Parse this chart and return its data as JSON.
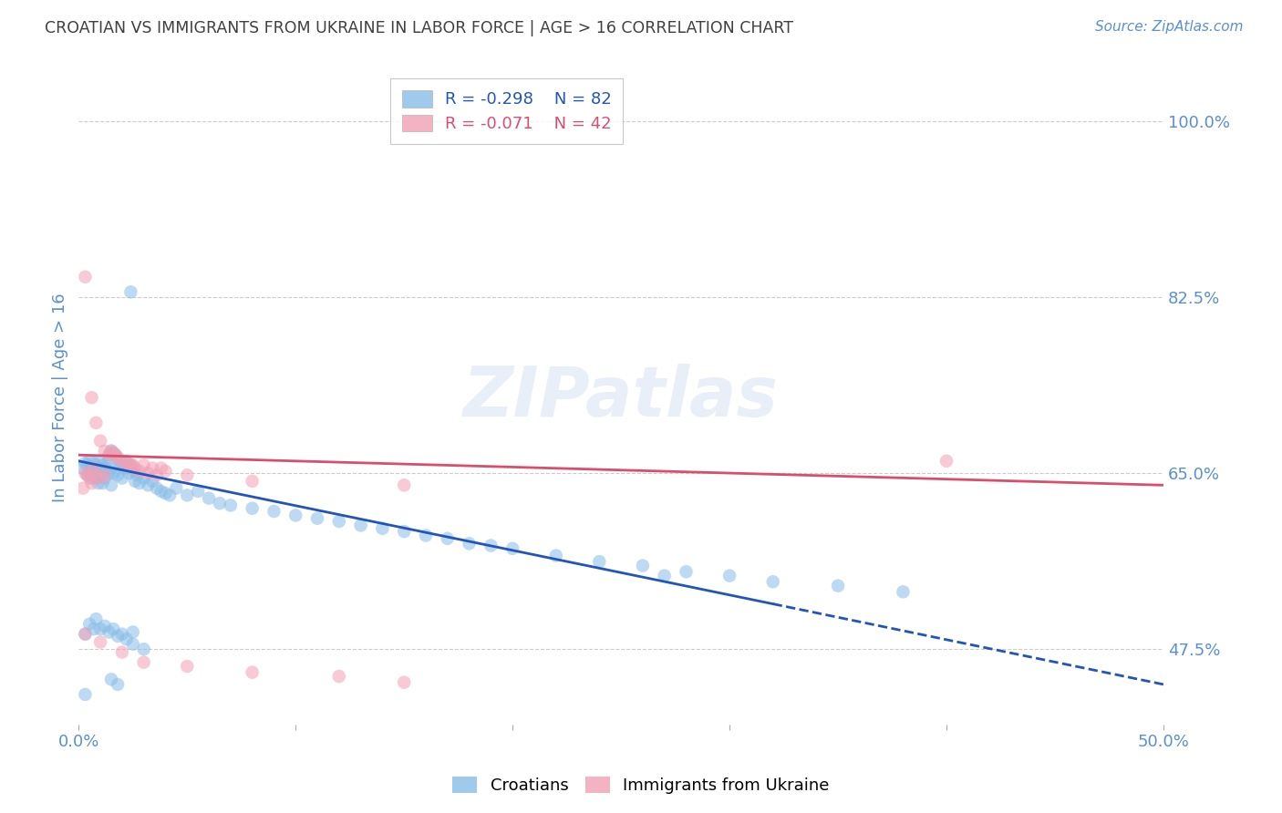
{
  "title": "CROATIAN VS IMMIGRANTS FROM UKRAINE IN LABOR FORCE | AGE > 16 CORRELATION CHART",
  "source": "Source: ZipAtlas.com",
  "ylabel": "In Labor Force | Age > 16",
  "xlim": [
    0.0,
    0.5
  ],
  "ylim": [
    0.4,
    1.05
  ],
  "xticks": [
    0.0,
    0.1,
    0.2,
    0.3,
    0.4,
    0.5
  ],
  "xticklabels": [
    "0.0%",
    "",
    "",
    "",
    "",
    "50.0%"
  ],
  "ytick_labels_right": [
    "100.0%",
    "82.5%",
    "65.0%",
    "47.5%"
  ],
  "ytick_vals_right": [
    1.0,
    0.825,
    0.65,
    0.475
  ],
  "watermark": "ZIPatlas",
  "blue_color": "#89BDE8",
  "pink_color": "#F2A0B5",
  "blue_line_color": "#2255BB",
  "pink_line_color": "#D94E6F",
  "axis_label_color": "#5B8FD4",
  "title_color": "#404040",
  "grid_color": "#CCCCCC",
  "blue_scatter": [
    [
      0.002,
      0.655
    ],
    [
      0.003,
      0.66
    ],
    [
      0.004,
      0.658
    ],
    [
      0.004,
      0.648
    ],
    [
      0.005,
      0.662
    ],
    [
      0.005,
      0.65
    ],
    [
      0.006,
      0.655
    ],
    [
      0.006,
      0.645
    ],
    [
      0.007,
      0.66
    ],
    [
      0.007,
      0.65
    ],
    [
      0.008,
      0.658
    ],
    [
      0.008,
      0.645
    ],
    [
      0.009,
      0.655
    ],
    [
      0.009,
      0.64
    ],
    [
      0.01,
      0.662
    ],
    [
      0.01,
      0.648
    ],
    [
      0.011,
      0.658
    ],
    [
      0.011,
      0.64
    ],
    [
      0.012,
      0.655
    ],
    [
      0.012,
      0.645
    ],
    [
      0.013,
      0.66
    ],
    [
      0.014,
      0.668
    ],
    [
      0.014,
      0.65
    ],
    [
      0.015,
      0.672
    ],
    [
      0.015,
      0.655
    ],
    [
      0.015,
      0.638
    ],
    [
      0.016,
      0.67
    ],
    [
      0.016,
      0.65
    ],
    [
      0.017,
      0.668
    ],
    [
      0.018,
      0.665
    ],
    [
      0.018,
      0.648
    ],
    [
      0.019,
      0.658
    ],
    [
      0.02,
      0.66
    ],
    [
      0.02,
      0.645
    ],
    [
      0.021,
      0.655
    ],
    [
      0.022,
      0.662
    ],
    [
      0.023,
      0.65
    ],
    [
      0.024,
      0.658
    ],
    [
      0.025,
      0.652
    ],
    [
      0.026,
      0.642
    ],
    [
      0.027,
      0.648
    ],
    [
      0.028,
      0.64
    ],
    [
      0.03,
      0.645
    ],
    [
      0.032,
      0.638
    ],
    [
      0.034,
      0.642
    ],
    [
      0.036,
      0.635
    ],
    [
      0.038,
      0.632
    ],
    [
      0.04,
      0.63
    ],
    [
      0.042,
      0.628
    ],
    [
      0.045,
      0.635
    ],
    [
      0.05,
      0.628
    ],
    [
      0.055,
      0.632
    ],
    [
      0.06,
      0.625
    ],
    [
      0.065,
      0.62
    ],
    [
      0.07,
      0.618
    ],
    [
      0.08,
      0.615
    ],
    [
      0.09,
      0.612
    ],
    [
      0.1,
      0.608
    ],
    [
      0.11,
      0.605
    ],
    [
      0.12,
      0.602
    ],
    [
      0.13,
      0.598
    ],
    [
      0.14,
      0.595
    ],
    [
      0.15,
      0.592
    ],
    [
      0.16,
      0.588
    ],
    [
      0.17,
      0.585
    ],
    [
      0.18,
      0.58
    ],
    [
      0.19,
      0.578
    ],
    [
      0.2,
      0.575
    ],
    [
      0.22,
      0.568
    ],
    [
      0.24,
      0.562
    ],
    [
      0.26,
      0.558
    ],
    [
      0.28,
      0.552
    ],
    [
      0.3,
      0.548
    ],
    [
      0.32,
      0.542
    ],
    [
      0.35,
      0.538
    ],
    [
      0.38,
      0.532
    ],
    [
      0.003,
      0.49
    ],
    [
      0.005,
      0.5
    ],
    [
      0.007,
      0.495
    ],
    [
      0.008,
      0.505
    ],
    [
      0.01,
      0.495
    ],
    [
      0.012,
      0.498
    ],
    [
      0.014,
      0.492
    ],
    [
      0.016,
      0.495
    ],
    [
      0.018,
      0.488
    ],
    [
      0.02,
      0.49
    ],
    [
      0.022,
      0.485
    ],
    [
      0.025,
      0.492
    ],
    [
      0.024,
      0.83
    ],
    [
      0.27,
      0.548
    ],
    [
      0.003,
      0.43
    ],
    [
      0.01,
      0.39
    ],
    [
      0.015,
      0.445
    ],
    [
      0.018,
      0.44
    ],
    [
      0.025,
      0.48
    ],
    [
      0.03,
      0.475
    ]
  ],
  "pink_scatter": [
    [
      0.003,
      0.845
    ],
    [
      0.006,
      0.725
    ],
    [
      0.008,
      0.7
    ],
    [
      0.01,
      0.682
    ],
    [
      0.012,
      0.672
    ],
    [
      0.014,
      0.668
    ],
    [
      0.015,
      0.672
    ],
    [
      0.016,
      0.67
    ],
    [
      0.017,
      0.668
    ],
    [
      0.018,
      0.665
    ],
    [
      0.02,
      0.662
    ],
    [
      0.022,
      0.66
    ],
    [
      0.024,
      0.658
    ],
    [
      0.025,
      0.658
    ],
    [
      0.026,
      0.655
    ],
    [
      0.028,
      0.652
    ],
    [
      0.03,
      0.658
    ],
    [
      0.032,
      0.65
    ],
    [
      0.034,
      0.655
    ],
    [
      0.036,
      0.648
    ],
    [
      0.038,
      0.655
    ],
    [
      0.04,
      0.652
    ],
    [
      0.05,
      0.648
    ],
    [
      0.08,
      0.642
    ],
    [
      0.003,
      0.65
    ],
    [
      0.004,
      0.648
    ],
    [
      0.005,
      0.645
    ],
    [
      0.006,
      0.64
    ],
    [
      0.007,
      0.655
    ],
    [
      0.008,
      0.648
    ],
    [
      0.01,
      0.645
    ],
    [
      0.012,
      0.648
    ],
    [
      0.003,
      0.49
    ],
    [
      0.01,
      0.482
    ],
    [
      0.02,
      0.472
    ],
    [
      0.03,
      0.462
    ],
    [
      0.05,
      0.458
    ],
    [
      0.08,
      0.452
    ],
    [
      0.12,
      0.448
    ],
    [
      0.15,
      0.442
    ],
    [
      0.4,
      0.662
    ],
    [
      0.002,
      0.635
    ],
    [
      0.15,
      0.638
    ]
  ],
  "blue_line_solid": [
    [
      0.0,
      0.662
    ],
    [
      0.32,
      0.52
    ]
  ],
  "blue_line_dashed": [
    [
      0.32,
      0.52
    ],
    [
      0.5,
      0.44
    ]
  ],
  "pink_line": [
    [
      0.0,
      0.668
    ],
    [
      0.5,
      0.638
    ]
  ]
}
